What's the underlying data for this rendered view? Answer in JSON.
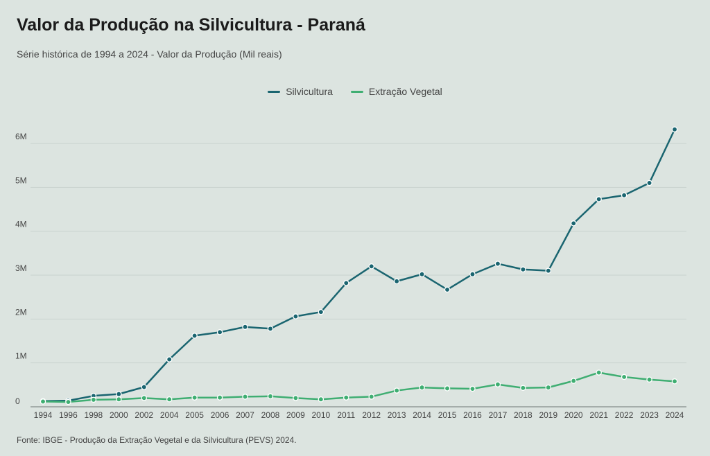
{
  "title": "Valor da Produção na Silvicultura - Paraná",
  "subtitle": "Série histórica de 1994 a 2024 - Valor da Produção (Mil reais)",
  "footer": "Fonte: IBGE - Produção da Extração Vegetal e da Silvicultura (PEVS) 2024.",
  "chart_data": {
    "type": "line",
    "title": "Valor da Produção na Silvicultura - Paraná",
    "subtitle": "Série histórica de 1994 a 2024 - Valor da Produção (Mil reais)",
    "xlabel": "",
    "ylabel": "",
    "x": [
      "1994",
      "1996",
      "1998",
      "2000",
      "2002",
      "2004",
      "2005",
      "2006",
      "2007",
      "2008",
      "2009",
      "2010",
      "2011",
      "2012",
      "2013",
      "2014",
      "2015",
      "2016",
      "2017",
      "2018",
      "2019",
      "2020",
      "2021",
      "2022",
      "2023",
      "2024"
    ],
    "ylim": [
      0,
      6300000
    ],
    "yticks": [
      0,
      1000000,
      2000000,
      3000000,
      4000000,
      5000000,
      6000000
    ],
    "ytick_labels": [
      "0",
      "1M",
      "2M",
      "3M",
      "4M",
      "5M",
      "6M"
    ],
    "grid": true,
    "legend_position": "top-center",
    "series": [
      {
        "name": "Silvicultura",
        "color": "#1a6570",
        "values": [
          130000,
          140000,
          250000,
          290000,
          450000,
          1080000,
          1620000,
          1700000,
          1820000,
          1780000,
          2060000,
          2160000,
          2820000,
          3200000,
          2860000,
          3020000,
          2670000,
          3020000,
          3260000,
          3130000,
          3100000,
          4180000,
          4730000,
          4820000,
          5100000,
          6320000
        ]
      },
      {
        "name": "Extração Vegetal",
        "color": "#3fae72",
        "values": [
          120000,
          110000,
          160000,
          170000,
          200000,
          170000,
          210000,
          210000,
          230000,
          240000,
          200000,
          170000,
          210000,
          230000,
          370000,
          440000,
          420000,
          410000,
          510000,
          430000,
          440000,
          590000,
          780000,
          680000,
          620000,
          580000
        ]
      }
    ]
  }
}
